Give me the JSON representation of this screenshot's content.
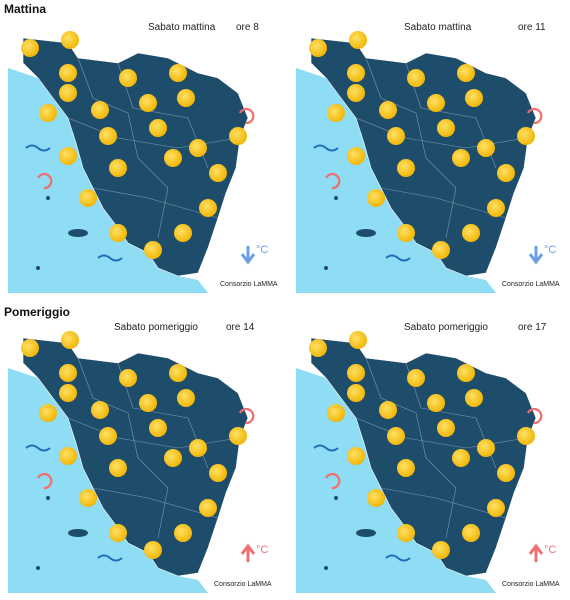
{
  "sections": [
    {
      "label": "Mattina",
      "maps": [
        {
          "title": "Sabato mattina",
          "time": "ore 8",
          "credit": "Consorzio LaMMA",
          "temp_unit": "°C"
        },
        {
          "title": "Sabato mattina",
          "time": "ore 11",
          "credit": "Consorzio LaMMA",
          "temp_unit": "°C"
        }
      ]
    },
    {
      "label": "Pomeriggio",
      "maps": [
        {
          "title": "Sabato pomeriggio",
          "time": "ore 14",
          "credit": "Consorzio LaMMA",
          "temp_unit": "°C"
        },
        {
          "title": "Sabato pomeriggio",
          "time": "ore 17",
          "credit": "Consorzio LaMMA",
          "temp_unit": "°C"
        }
      ]
    }
  ]
}
